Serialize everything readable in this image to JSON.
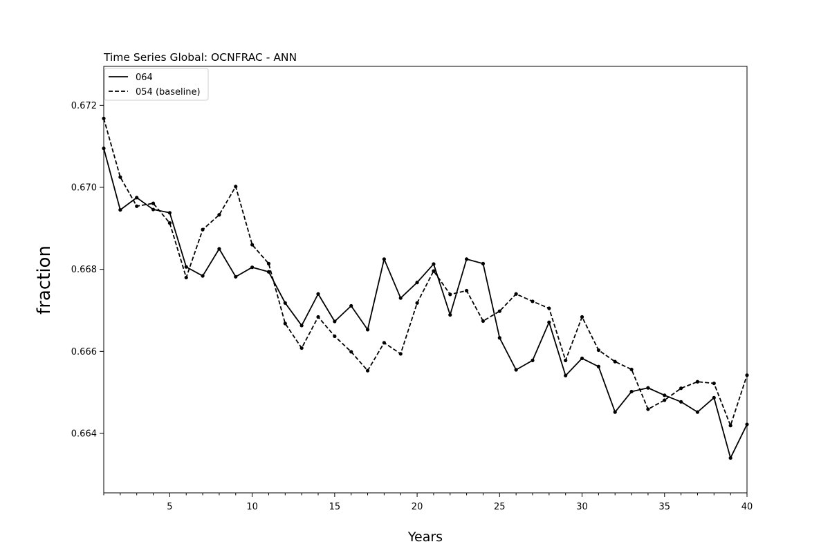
{
  "chart_data": {
    "type": "line",
    "title": "Time Series Global: OCNFRAC - ANN",
    "xlabel": "Years",
    "ylabel": "fraction",
    "xlim": [
      1,
      40
    ],
    "ylim": [
      0.66255,
      0.67295
    ],
    "x_ticks": [
      5,
      10,
      15,
      20,
      25,
      30,
      35,
      40
    ],
    "y_ticks": [
      0.664,
      0.666,
      0.668,
      0.67,
      0.672
    ],
    "y_tick_labels": [
      "0.664",
      "0.666",
      "0.668",
      "0.670",
      "0.672"
    ],
    "legend_position": "top-left",
    "grid": false,
    "x": [
      1,
      2,
      3,
      4,
      5,
      6,
      7,
      8,
      9,
      10,
      11,
      12,
      13,
      14,
      15,
      16,
      17,
      18,
      19,
      20,
      21,
      22,
      23,
      24,
      25,
      26,
      27,
      28,
      29,
      30,
      31,
      32,
      33,
      34,
      35,
      36,
      37,
      38,
      39,
      40
    ],
    "series": [
      {
        "name": "064",
        "style": "solid",
        "color": "#000000",
        "values": [
          0.67095,
          0.66945,
          0.66975,
          0.66946,
          0.66938,
          0.66806,
          0.66784,
          0.6685,
          0.66782,
          0.66805,
          0.66794,
          0.66718,
          0.66663,
          0.6674,
          0.66673,
          0.66711,
          0.66653,
          0.66825,
          0.6673,
          0.66768,
          0.66813,
          0.66689,
          0.66825,
          0.66814,
          0.66633,
          0.66555,
          0.66578,
          0.66671,
          0.66541,
          0.66583,
          0.66563,
          0.66452,
          0.66502,
          0.66511,
          0.66493,
          0.66477,
          0.66452,
          0.66487,
          0.6634,
          0.66422
        ]
      },
      {
        "name": "054 (baseline)",
        "style": "dashed",
        "color": "#000000",
        "values": [
          0.67168,
          0.67025,
          0.66954,
          0.66961,
          0.66913,
          0.6678,
          0.66897,
          0.66933,
          0.67002,
          0.6686,
          0.66814,
          0.66668,
          0.66608,
          0.66684,
          0.66637,
          0.66599,
          0.66553,
          0.66621,
          0.66594,
          0.66718,
          0.66796,
          0.66739,
          0.66748,
          0.66674,
          0.66698,
          0.6674,
          0.66722,
          0.66705,
          0.66578,
          0.66684,
          0.66603,
          0.66575,
          0.66556,
          0.66459,
          0.66481,
          0.6651,
          0.66526,
          0.66522,
          0.66419,
          0.66542
        ]
      }
    ]
  }
}
